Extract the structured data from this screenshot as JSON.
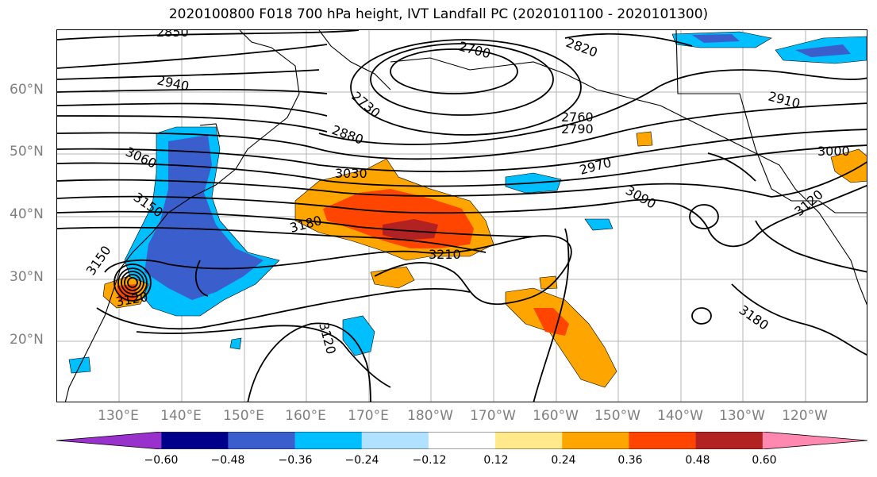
{
  "title": "2020100800 F018 700 hPa height, IVT Landfall PC (2020101100 - 2020101300)",
  "lat_labels": [
    "60°N",
    "50°N",
    "40°N",
    "30°N",
    "20°N"
  ],
  "lon_labels": [
    "130°E",
    "140°E",
    "150°E",
    "160°E",
    "170°E",
    "180°W",
    "170°W",
    "160°W",
    "150°W",
    "140°W",
    "130°W",
    "120°W"
  ],
  "contour_labels": [
    "2850",
    "2940",
    "2730",
    "2700",
    "2820",
    "2760",
    "2790",
    "2910",
    "3000",
    "3060",
    "2880",
    "3030",
    "2970",
    "3090",
    "3150",
    "3180",
    "3210",
    "3120",
    "3150",
    "3120",
    "3120",
    "3180"
  ],
  "colorbar": {
    "ticks": [
      "−0.60",
      "−0.48",
      "−0.36",
      "−0.24",
      "−0.12",
      "0.12",
      "0.24",
      "0.36",
      "0.48",
      "0.60"
    ],
    "colors": [
      "#9932cc",
      "#00008b",
      "#3a5fcd",
      "#00bfff",
      "#b0e2ff",
      "#ffffff",
      "#ffe98a",
      "#ffa500",
      "#ff4500",
      "#b22222",
      "#ff88b0"
    ]
  },
  "shading_colors": {
    "neg_light": "#00bfff",
    "neg_mid": "#3a5fcd",
    "pos_light": "#ffa500",
    "pos_mid": "#ff4500",
    "pos_dark": "#b22222",
    "pos_pale": "#ffe98a"
  }
}
